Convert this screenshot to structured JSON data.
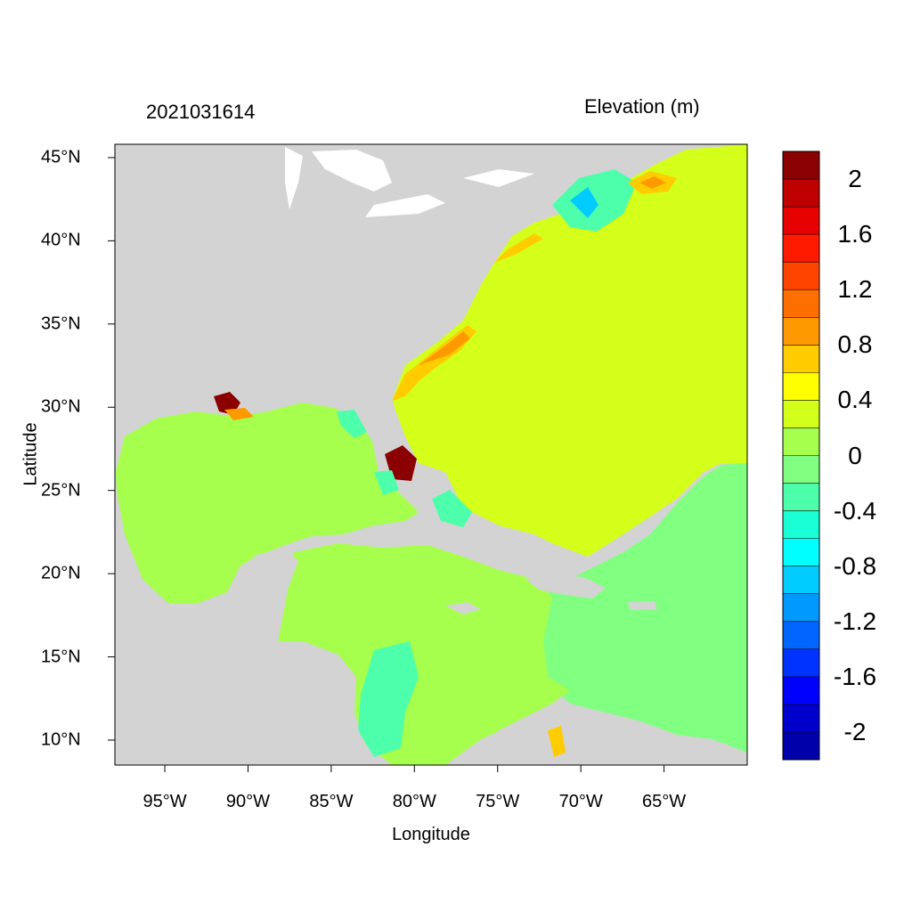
{
  "titles": {
    "left": "2021031614",
    "right": "Elevation (m)"
  },
  "axes": {
    "xlabel": "Longitude",
    "ylabel": "Latitude",
    "xlim": [
      -98.0,
      -60.0
    ],
    "ylim": [
      8.5,
      45.8
    ],
    "xticks": [
      {
        "value": -95,
        "label": "95°W"
      },
      {
        "value": -90,
        "label": "90°W"
      },
      {
        "value": -85,
        "label": "85°W"
      },
      {
        "value": -80,
        "label": "80°W"
      },
      {
        "value": -75,
        "label": "75°W"
      },
      {
        "value": -70,
        "label": "70°W"
      },
      {
        "value": -65,
        "label": "65°W"
      }
    ],
    "yticks": [
      {
        "value": 45,
        "label": "45°N"
      },
      {
        "value": 40,
        "label": "40°N"
      },
      {
        "value": 35,
        "label": "35°N"
      },
      {
        "value": 30,
        "label": "30°N"
      },
      {
        "value": 25,
        "label": "25°N"
      },
      {
        "value": 20,
        "label": "20°N"
      },
      {
        "value": 15,
        "label": "15°N"
      },
      {
        "value": 10,
        "label": "10°N"
      }
    ]
  },
  "colorbar": {
    "colors_top_to_bottom": [
      "#8b0000",
      "#bf0000",
      "#e60000",
      "#ff1a00",
      "#ff4400",
      "#ff6f00",
      "#ff9900",
      "#ffcc00",
      "#ffff00",
      "#d4ff1a",
      "#a6ff4d",
      "#80ff80",
      "#4dffaa",
      "#1affd4",
      "#00ffff",
      "#00ccff",
      "#0099ff",
      "#0066ff",
      "#0033ff",
      "#0000ff",
      "#0000cc",
      "#0000aa"
    ],
    "labels": [
      {
        "text": "2",
        "edge": 1
      },
      {
        "text": "1.6",
        "edge": 3
      },
      {
        "text": "1.2",
        "edge": 5
      },
      {
        "text": "0.8",
        "edge": 7
      },
      {
        "text": "0.4",
        "edge": 9
      },
      {
        "text": "0",
        "edge": 11
      },
      {
        "text": "-0.4",
        "edge": 13
      },
      {
        "text": "-0.8",
        "edge": 15
      },
      {
        "text": "-1.2",
        "edge": 17
      },
      {
        "text": "-1.6",
        "edge": 19
      },
      {
        "text": "-2",
        "edge": 21
      }
    ]
  },
  "map_colors": {
    "land": "#d3d3d3",
    "lakes": "#ffffff",
    "gulf": "#a6ff4d",
    "atlantic": "#d4ff1a",
    "caribbean_east": "#80ff80",
    "nearshore_positive": "#ffcc00",
    "storm_high": "#ff9900",
    "storm_peak": "#8b0000",
    "negative": "#4dffaa",
    "strong_negative": "#00ccff"
  }
}
